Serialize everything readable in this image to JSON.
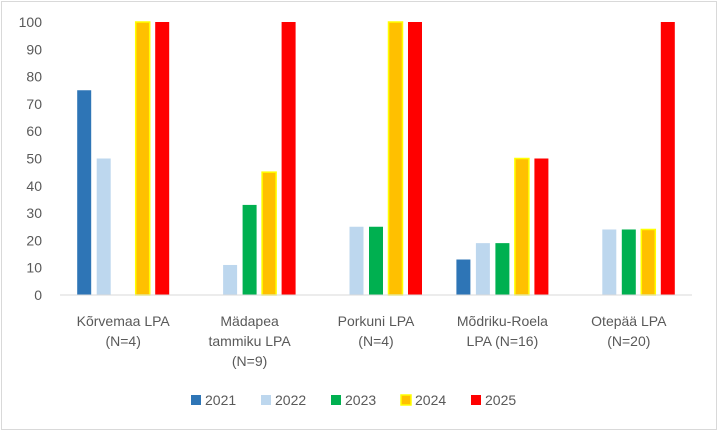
{
  "chart_data": {
    "type": "bar",
    "title": "",
    "xlabel": "",
    "ylabel": "",
    "ylim": [
      0,
      100
    ],
    "yticks": [
      0,
      10,
      20,
      30,
      40,
      50,
      60,
      70,
      80,
      90,
      100
    ],
    "grid": false,
    "legend_position": "bottom",
    "categories": [
      [
        "Kõrvemaa LPA",
        "(N=4)"
      ],
      [
        "Mädapea",
        "tammiku LPA",
        "(N=9)"
      ],
      [
        "Porkuni LPA",
        "(N=4)"
      ],
      [
        "Mõdriku-Roela",
        "LPA (N=16)"
      ],
      [
        "Otepää LPA",
        "(N=20)"
      ]
    ],
    "series": [
      {
        "name": "2021",
        "color": "#2e75b6",
        "values": [
          75,
          null,
          null,
          13,
          null
        ]
      },
      {
        "name": "2022",
        "color": "#bdd7ee",
        "values": [
          50,
          11,
          25,
          19,
          24
        ]
      },
      {
        "name": "2023",
        "color": "#00b050",
        "values": [
          null,
          33,
          25,
          19,
          24
        ]
      },
      {
        "name": "2024",
        "color": "#ffc000",
        "stroke": "#ffff00",
        "values": [
          100,
          45,
          100,
          50,
          24
        ]
      },
      {
        "name": "2025",
        "color": "#ff0000",
        "values": [
          100,
          100,
          100,
          50,
          100
        ]
      }
    ]
  }
}
